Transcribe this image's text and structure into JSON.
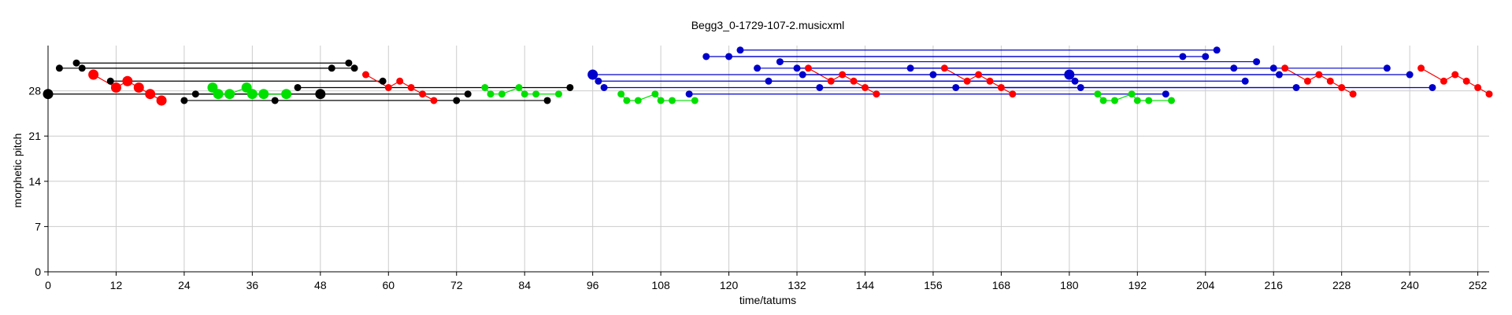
{
  "chart_data": {
    "type": "scatter",
    "title": "Begg3_0-1729-107-2.musicxml",
    "xlabel": "time/tatums",
    "ylabel": "morphetic pitch",
    "xlim": [
      0,
      254
    ],
    "ylim": [
      0,
      35
    ],
    "xticks": [
      0,
      12,
      24,
      36,
      48,
      60,
      72,
      84,
      96,
      108,
      120,
      132,
      144,
      156,
      168,
      180,
      192,
      204,
      216,
      228,
      240,
      252
    ],
    "yticks": [
      0,
      7,
      14,
      21,
      28
    ],
    "grid": true,
    "colors": {
      "black": "#000000",
      "red": "#ff0000",
      "green": "#00e000",
      "blue": "#0000cc",
      "grid": "#cccccc"
    },
    "series": [
      {
        "color": "black",
        "points": [
          {
            "x": 0,
            "y": 27.5,
            "big": true
          },
          {
            "x": 2,
            "y": 31.5
          },
          {
            "x": 5,
            "y": 32.3
          },
          {
            "x": 6,
            "y": 31.5
          },
          {
            "x": 11,
            "y": 29.5
          },
          {
            "x": 24,
            "y": 26.5
          },
          {
            "x": 26,
            "y": 27.5
          },
          {
            "x": 40,
            "y": 26.5
          },
          {
            "x": 44,
            "y": 28.5
          },
          {
            "x": 48,
            "y": 27.5,
            "big": true
          },
          {
            "x": 50,
            "y": 31.5
          },
          {
            "x": 53,
            "y": 32.3
          },
          {
            "x": 54,
            "y": 31.5
          },
          {
            "x": 59,
            "y": 29.5
          },
          {
            "x": 72,
            "y": 26.5
          },
          {
            "x": 74,
            "y": 27.5
          },
          {
            "x": 88,
            "y": 26.5
          },
          {
            "x": 92,
            "y": 28.5
          }
        ],
        "links": [
          [
            0,
            27.5,
            48,
            27.5
          ],
          [
            2,
            31.5,
            50,
            31.5
          ],
          [
            5,
            32.3,
            53,
            32.3
          ],
          [
            6,
            31.5,
            54,
            31.5
          ],
          [
            11,
            29.5,
            59,
            29.5
          ],
          [
            24,
            26.5,
            72,
            26.5
          ],
          [
            26,
            27.5,
            74,
            27.5
          ],
          [
            40,
            26.5,
            88,
            26.5
          ],
          [
            44,
            28.5,
            92,
            28.5
          ]
        ]
      },
      {
        "color": "red",
        "points": [
          {
            "x": 8,
            "y": 30.5,
            "big": true
          },
          {
            "x": 12,
            "y": 28.5,
            "big": true
          },
          {
            "x": 14,
            "y": 29.5,
            "big": true
          },
          {
            "x": 16,
            "y": 28.5,
            "big": true
          },
          {
            "x": 18,
            "y": 27.5,
            "big": true
          },
          {
            "x": 20,
            "y": 26.5,
            "big": true
          },
          {
            "x": 56,
            "y": 30.5
          },
          {
            "x": 60,
            "y": 28.5
          },
          {
            "x": 62,
            "y": 29.5
          },
          {
            "x": 64,
            "y": 28.5
          },
          {
            "x": 66,
            "y": 27.5
          },
          {
            "x": 68,
            "y": 26.5
          },
          {
            "x": 134,
            "y": 31.5
          },
          {
            "x": 138,
            "y": 29.5
          },
          {
            "x": 140,
            "y": 30.5
          },
          {
            "x": 142,
            "y": 29.5
          },
          {
            "x": 144,
            "y": 28.5
          },
          {
            "x": 146,
            "y": 27.5
          },
          {
            "x": 158,
            "y": 31.5
          },
          {
            "x": 162,
            "y": 29.5
          },
          {
            "x": 164,
            "y": 30.5
          },
          {
            "x": 166,
            "y": 29.5
          },
          {
            "x": 168,
            "y": 28.5
          },
          {
            "x": 170,
            "y": 27.5
          },
          {
            "x": 218,
            "y": 31.5
          },
          {
            "x": 222,
            "y": 29.5
          },
          {
            "x": 224,
            "y": 30.5
          },
          {
            "x": 226,
            "y": 29.5
          },
          {
            "x": 228,
            "y": 28.5
          },
          {
            "x": 230,
            "y": 27.5
          },
          {
            "x": 242,
            "y": 31.5
          },
          {
            "x": 246,
            "y": 29.5
          },
          {
            "x": 248,
            "y": 30.5
          },
          {
            "x": 250,
            "y": 29.5
          },
          {
            "x": 252,
            "y": 28.5
          },
          {
            "x": 254,
            "y": 27.5
          }
        ],
        "links": [
          [
            8,
            30.5,
            12,
            28.5
          ],
          [
            12,
            28.5,
            14,
            29.5
          ],
          [
            14,
            29.5,
            16,
            28.5
          ],
          [
            16,
            28.5,
            18,
            27.5
          ],
          [
            18,
            27.5,
            20,
            26.5
          ],
          [
            56,
            30.5,
            60,
            28.5
          ],
          [
            60,
            28.5,
            62,
            29.5
          ],
          [
            62,
            29.5,
            64,
            28.5
          ],
          [
            64,
            28.5,
            66,
            27.5
          ],
          [
            66,
            27.5,
            68,
            26.5
          ],
          [
            134,
            31.5,
            138,
            29.5
          ],
          [
            138,
            29.5,
            140,
            30.5
          ],
          [
            140,
            30.5,
            142,
            29.5
          ],
          [
            142,
            29.5,
            144,
            28.5
          ],
          [
            144,
            28.5,
            146,
            27.5
          ],
          [
            158,
            31.5,
            162,
            29.5
          ],
          [
            162,
            29.5,
            164,
            30.5
          ],
          [
            164,
            30.5,
            166,
            29.5
          ],
          [
            166,
            29.5,
            168,
            28.5
          ],
          [
            168,
            28.5,
            170,
            27.5
          ],
          [
            218,
            31.5,
            222,
            29.5
          ],
          [
            222,
            29.5,
            224,
            30.5
          ],
          [
            224,
            30.5,
            226,
            29.5
          ],
          [
            226,
            29.5,
            228,
            28.5
          ],
          [
            228,
            28.5,
            230,
            27.5
          ],
          [
            242,
            31.5,
            246,
            29.5
          ],
          [
            246,
            29.5,
            248,
            30.5
          ],
          [
            248,
            30.5,
            250,
            29.5
          ],
          [
            250,
            29.5,
            252,
            28.5
          ],
          [
            252,
            28.5,
            254,
            27.5
          ]
        ]
      },
      {
        "color": "green",
        "points": [
          {
            "x": 29,
            "y": 28.5,
            "big": true
          },
          {
            "x": 30,
            "y": 27.5,
            "big": true
          },
          {
            "x": 32,
            "y": 27.5,
            "big": true
          },
          {
            "x": 35,
            "y": 28.5,
            "big": true
          },
          {
            "x": 36,
            "y": 27.5,
            "big": true
          },
          {
            "x": 38,
            "y": 27.5,
            "big": true
          },
          {
            "x": 42,
            "y": 27.5,
            "big": true
          },
          {
            "x": 77,
            "y": 28.5
          },
          {
            "x": 78,
            "y": 27.5
          },
          {
            "x": 80,
            "y": 27.5
          },
          {
            "x": 83,
            "y": 28.5
          },
          {
            "x": 84,
            "y": 27.5
          },
          {
            "x": 86,
            "y": 27.5
          },
          {
            "x": 90,
            "y": 27.5
          },
          {
            "x": 101,
            "y": 27.5
          },
          {
            "x": 102,
            "y": 26.5
          },
          {
            "x": 104,
            "y": 26.5
          },
          {
            "x": 107,
            "y": 27.5
          },
          {
            "x": 108,
            "y": 26.5
          },
          {
            "x": 110,
            "y": 26.5
          },
          {
            "x": 114,
            "y": 26.5
          },
          {
            "x": 185,
            "y": 27.5
          },
          {
            "x": 186,
            "y": 26.5
          },
          {
            "x": 188,
            "y": 26.5
          },
          {
            "x": 191,
            "y": 27.5
          },
          {
            "x": 192,
            "y": 26.5
          },
          {
            "x": 194,
            "y": 26.5
          },
          {
            "x": 198,
            "y": 26.5
          }
        ],
        "links": [
          [
            29,
            28.5,
            30,
            27.5
          ],
          [
            30,
            27.5,
            32,
            27.5
          ],
          [
            32,
            27.5,
            35,
            28.5
          ],
          [
            35,
            28.5,
            36,
            27.5
          ],
          [
            36,
            27.5,
            38,
            27.5
          ],
          [
            38,
            27.5,
            42,
            27.5
          ],
          [
            77,
            28.5,
            78,
            27.5
          ],
          [
            78,
            27.5,
            80,
            27.5
          ],
          [
            80,
            27.5,
            83,
            28.5
          ],
          [
            83,
            28.5,
            84,
            27.5
          ],
          [
            84,
            27.5,
            86,
            27.5
          ],
          [
            86,
            27.5,
            90,
            27.5
          ],
          [
            101,
            27.5,
            102,
            26.5
          ],
          [
            102,
            26.5,
            104,
            26.5
          ],
          [
            104,
            26.5,
            107,
            27.5
          ],
          [
            107,
            27.5,
            108,
            26.5
          ],
          [
            108,
            26.5,
            110,
            26.5
          ],
          [
            110,
            26.5,
            114,
            26.5
          ],
          [
            185,
            27.5,
            186,
            26.5
          ],
          [
            186,
            26.5,
            188,
            26.5
          ],
          [
            188,
            26.5,
            191,
            27.5
          ],
          [
            191,
            27.5,
            192,
            26.5
          ],
          [
            192,
            26.5,
            194,
            26.5
          ],
          [
            194,
            26.5,
            198,
            26.5
          ]
        ]
      },
      {
        "color": "blue",
        "points": [
          {
            "x": 96,
            "y": 30.5,
            "big": true
          },
          {
            "x": 97,
            "y": 29.5
          },
          {
            "x": 98,
            "y": 28.5
          },
          {
            "x": 113,
            "y": 27.5
          },
          {
            "x": 116,
            "y": 33.3
          },
          {
            "x": 120,
            "y": 33.3
          },
          {
            "x": 122,
            "y": 34.3
          },
          {
            "x": 125,
            "y": 31.5
          },
          {
            "x": 127,
            "y": 29.5
          },
          {
            "x": 129,
            "y": 32.5
          },
          {
            "x": 132,
            "y": 31.5
          },
          {
            "x": 133,
            "y": 30.5
          },
          {
            "x": 136,
            "y": 28.5
          },
          {
            "x": 152,
            "y": 31.5
          },
          {
            "x": 156,
            "y": 30.5
          },
          {
            "x": 160,
            "y": 28.5
          },
          {
            "x": 180,
            "y": 30.5,
            "big": true
          },
          {
            "x": 181,
            "y": 29.5
          },
          {
            "x": 182,
            "y": 28.5
          },
          {
            "x": 197,
            "y": 27.5
          },
          {
            "x": 200,
            "y": 33.3
          },
          {
            "x": 204,
            "y": 33.3
          },
          {
            "x": 206,
            "y": 34.3
          },
          {
            "x": 209,
            "y": 31.5
          },
          {
            "x": 211,
            "y": 29.5
          },
          {
            "x": 213,
            "y": 32.5
          },
          {
            "x": 216,
            "y": 31.5
          },
          {
            "x": 217,
            "y": 30.5
          },
          {
            "x": 220,
            "y": 28.5
          },
          {
            "x": 236,
            "y": 31.5
          },
          {
            "x": 240,
            "y": 30.5
          },
          {
            "x": 244,
            "y": 28.5
          }
        ],
        "links": [
          [
            96,
            30.5,
            180,
            30.5
          ],
          [
            97,
            29.5,
            181,
            29.5
          ],
          [
            98,
            28.5,
            182,
            28.5
          ],
          [
            113,
            27.5,
            197,
            27.5
          ],
          [
            116,
            33.3,
            200,
            33.3
          ],
          [
            120,
            33.3,
            204,
            33.3
          ],
          [
            122,
            34.3,
            206,
            34.3
          ],
          [
            125,
            31.5,
            209,
            31.5
          ],
          [
            127,
            29.5,
            211,
            29.5
          ],
          [
            129,
            32.5,
            213,
            32.5
          ],
          [
            132,
            31.5,
            216,
            31.5
          ],
          [
            133,
            30.5,
            217,
            30.5
          ],
          [
            136,
            28.5,
            220,
            28.5
          ],
          [
            152,
            31.5,
            236,
            31.5
          ],
          [
            156,
            30.5,
            240,
            30.5
          ],
          [
            160,
            28.5,
            244,
            28.5
          ]
        ]
      }
    ]
  }
}
